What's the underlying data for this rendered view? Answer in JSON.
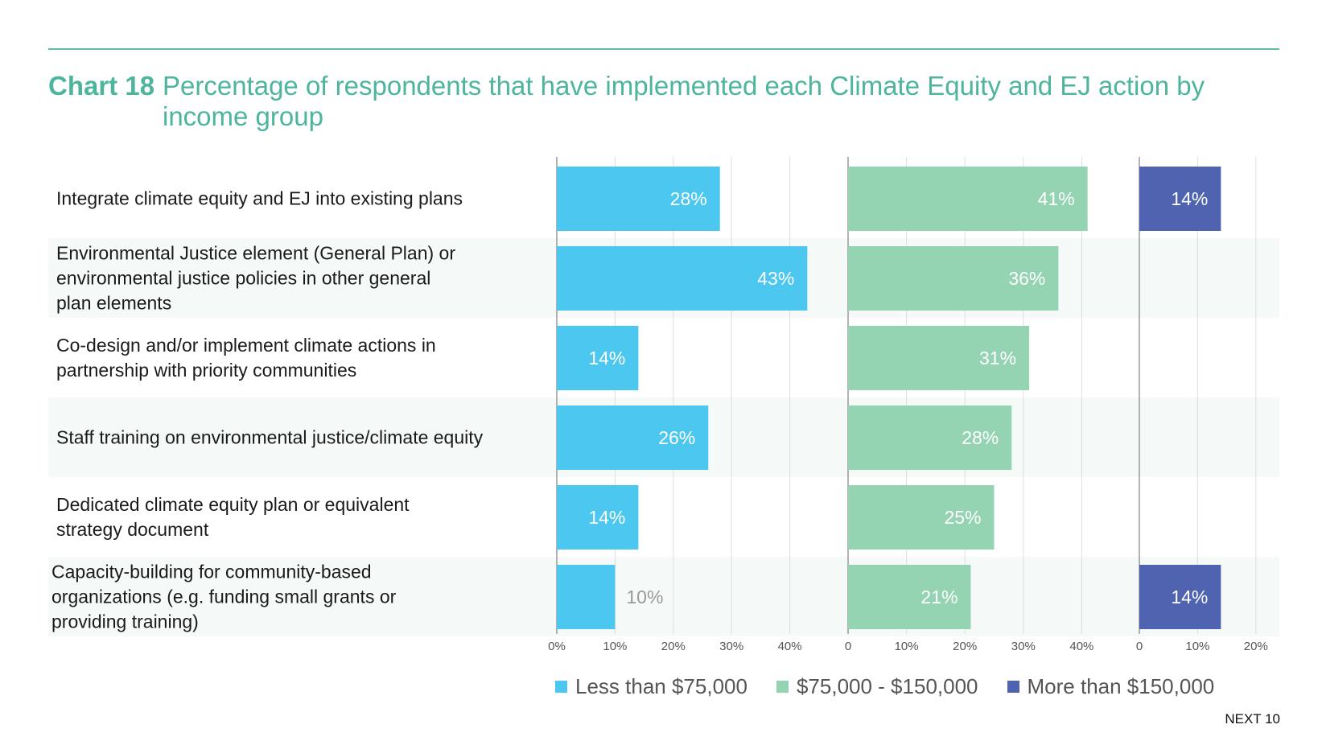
{
  "header": {
    "chart_number": "Chart 18",
    "title": "Percentage of respondents that have implemented each Climate Equity and EJ action by income group"
  },
  "colors": {
    "accent": "#4db59d",
    "series": [
      "#4cc7f0",
      "#95d4b3",
      "#5063b0"
    ],
    "row_stripe": "#f5f9f7"
  },
  "chart_data": {
    "type": "bar",
    "orientation": "horizontal",
    "categories": [
      "Integrate climate equity and EJ into existing plans",
      "Environmental Justice element (General Plan) or environmental justice policies in other general plan elements",
      "Co-design and/or implement climate actions in partnership with priority communities",
      "Staff training on environmental justice/climate equity",
      "Dedicated climate equity plan or equivalent strategy document",
      "Capacity-building for community-based organizations (e.g. funding small grants or providing training)"
    ],
    "category_lines": [
      [
        "Integrate climate equity and EJ into existing plans"
      ],
      [
        "Environmental Justice element (General Plan) or",
        "environmental justice policies in other general",
        "plan elements"
      ],
      [
        "Co-design and/or implement climate actions in",
        "partnership with priority communities"
      ],
      [
        "Staff training on environmental justice/climate equity"
      ],
      [
        "Dedicated climate equity plan or equivalent",
        "strategy document"
      ],
      [
        "Capacity-building for community-based",
        "organizations (e.g. funding small grants or",
        "providing training)"
      ]
    ],
    "series": [
      {
        "name": "Less than $75,000",
        "values": [
          28,
          43,
          14,
          26,
          14,
          10
        ],
        "labels": [
          "28%",
          "43%",
          "14%",
          "26%",
          "14%",
          "10%"
        ],
        "xlim": [
          0,
          45
        ],
        "ticks": [
          "0%",
          "10%",
          "20%",
          "30%",
          "40%"
        ]
      },
      {
        "name": "$75,000 - $150,000",
        "values": [
          41,
          36,
          31,
          28,
          25,
          21
        ],
        "labels": [
          "41%",
          "36%",
          "31%",
          "28%",
          "25%",
          "21%"
        ],
        "xlim": [
          0,
          45
        ],
        "ticks": [
          "0",
          "10%",
          "20%",
          "30%",
          "40%"
        ]
      },
      {
        "name": "More than $150,000",
        "values": [
          14,
          0,
          0,
          0,
          0,
          14
        ],
        "labels": [
          "14%",
          "",
          "",
          "",
          "",
          "14%"
        ],
        "xlim": [
          0,
          24
        ],
        "ticks": [
          "0",
          "10%",
          "20%"
        ]
      }
    ],
    "grid": true,
    "legend_position": "bottom"
  },
  "footer": {
    "brand": "NEXT 10"
  }
}
